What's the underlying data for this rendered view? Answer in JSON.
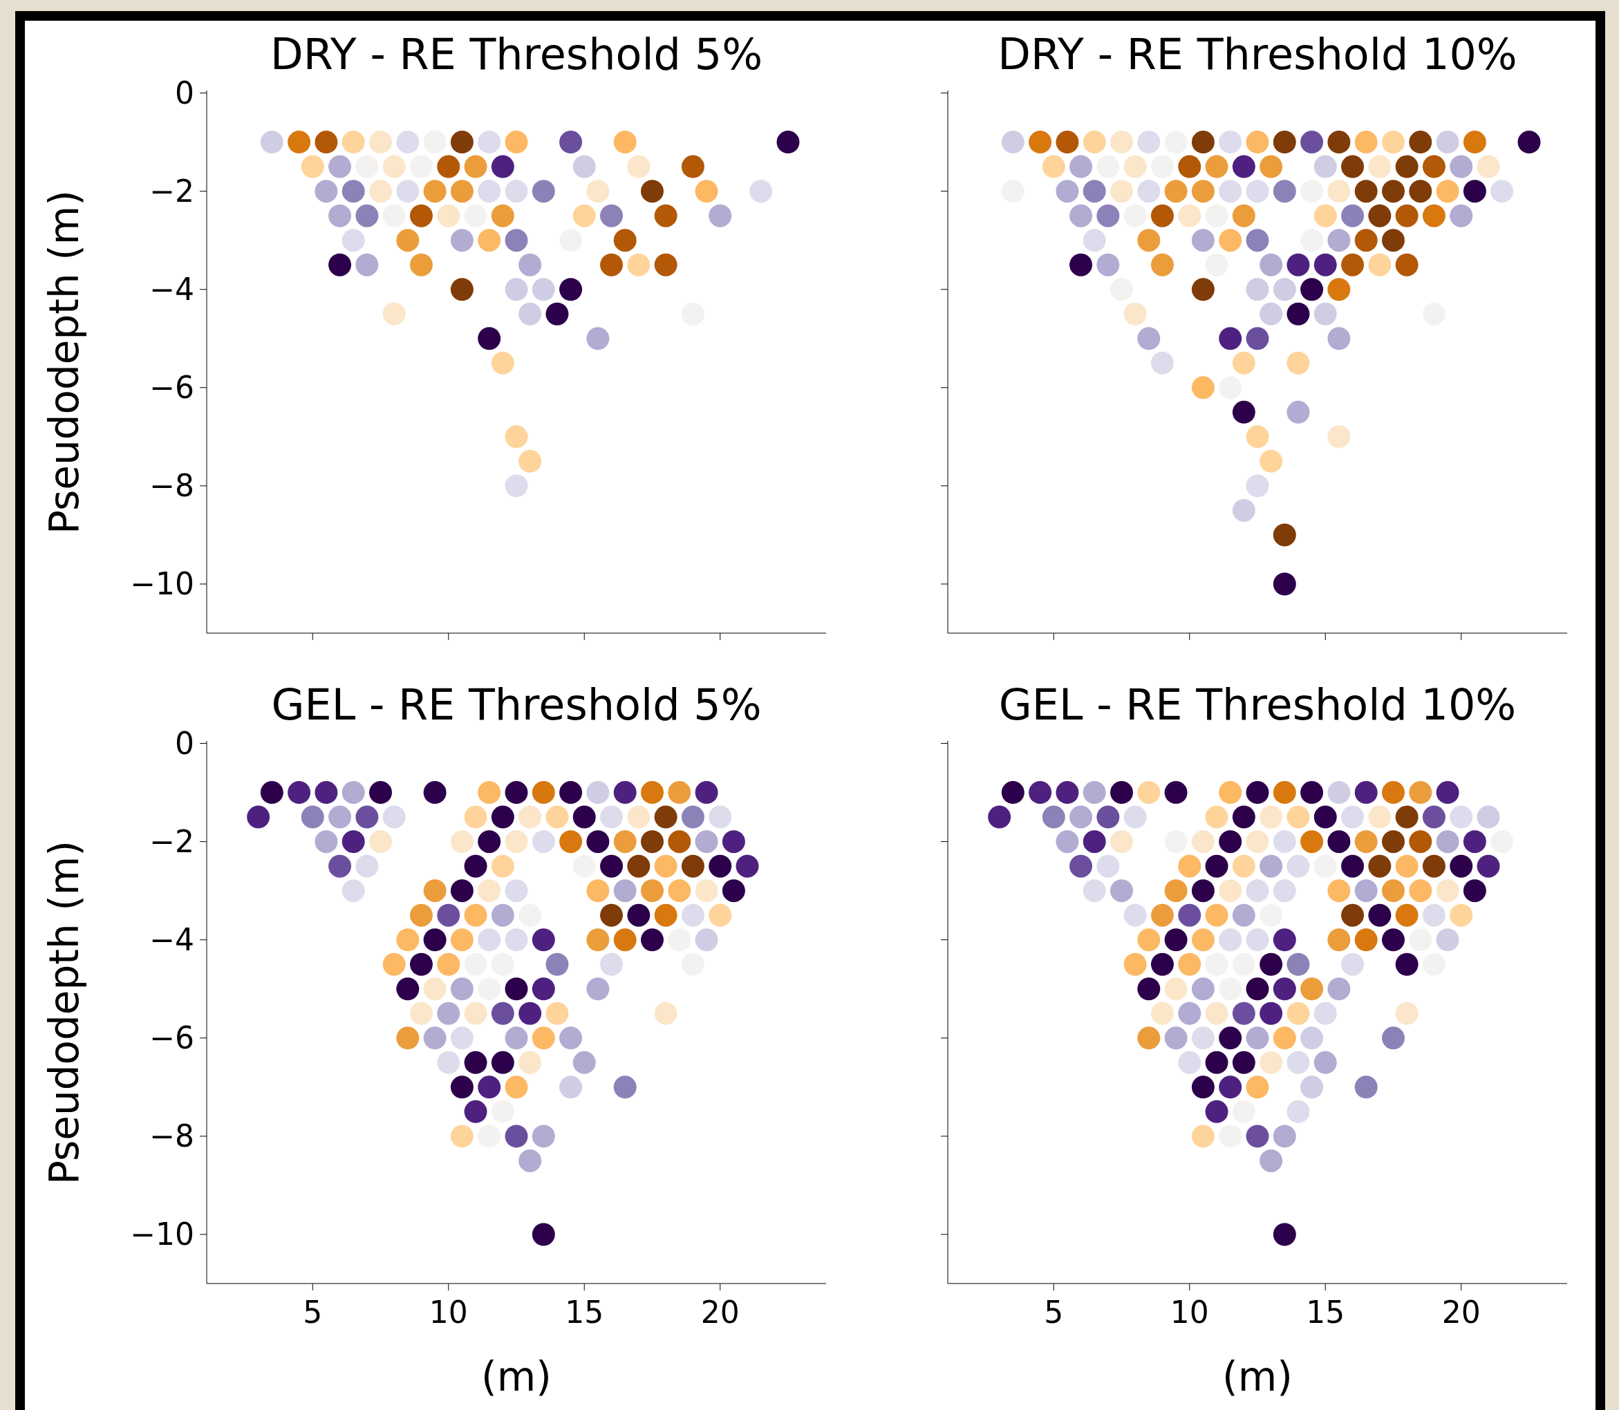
{
  "chart_data": [
    {
      "type": "scatter",
      "title": "DRY - RE Threshold 5%",
      "ylabel": "Pseudodepth (m)",
      "xlim": [
        1.1,
        23.9
      ],
      "ylim": [
        -11,
        0.05
      ],
      "xticks": [
        5,
        10,
        15,
        20
      ],
      "yticks": [
        0,
        {
          "value": -2,
          "label": "−2"
        },
        {
          "value": -4,
          "label": "−4"
        },
        {
          "value": -6,
          "label": "−6"
        },
        {
          "value": -8,
          "label": "−8"
        },
        {
          "value": -10,
          "label": "−10"
        }
      ],
      "tick_labels": "y",
      "marker": "circle",
      "series": [
        {
          "x": [
            3.5,
            4.5,
            5.5,
            6.5,
            7.5,
            8.5,
            9.5,
            10.5,
            11.5,
            12.5,
            14.5,
            16.5,
            22.5,
            5,
            6,
            7,
            8,
            9,
            10,
            11,
            12,
            15,
            17,
            19,
            5.5,
            6.5,
            7.5,
            8.5,
            9.5,
            10.5,
            11.5,
            12.5,
            13.5,
            15.5,
            17.5,
            19.5,
            21.5,
            6,
            7,
            8,
            9,
            10,
            11,
            12,
            15,
            16,
            18,
            20,
            6.5,
            8.5,
            10.5,
            11.5,
            12.5,
            14.5,
            16.5,
            6,
            7,
            9,
            13,
            16,
            17,
            18,
            10.5,
            12.5,
            13.5,
            14.5,
            8,
            13,
            14,
            19,
            11.5,
            15.5,
            12,
            12.5,
            13,
            12.5
          ],
          "values": [
            -1,
            -1,
            -1,
            -1,
            -1,
            -1,
            -1,
            -1,
            -1,
            -1,
            -1,
            -1,
            -1,
            -1.5,
            -1.5,
            -1.5,
            -1.5,
            -1.5,
            -1.5,
            -1.5,
            -1.5,
            -1.5,
            -1.5,
            -1.5,
            -2,
            -2,
            -2,
            -2,
            -2,
            -2,
            -2,
            -2,
            -2,
            -2,
            -2,
            -2,
            -2,
            -2.5,
            -2.5,
            -2.5,
            -2.5,
            -2.5,
            -2.5,
            -2.5,
            -2.5,
            -2.5,
            -2.5,
            -2.5,
            -3,
            -3,
            -3,
            -3,
            -3,
            -3,
            -3,
            -3.5,
            -3.5,
            -3.5,
            -3.5,
            -3.5,
            -3.5,
            -3.5,
            -4,
            -4,
            -4,
            -4,
            -4.5,
            -4.5,
            -4.5,
            -4.5,
            -5,
            -5,
            -5.5,
            -7,
            -7.5,
            -8
          ],
          "colors": [
            "#cecde4",
            "#d8780f",
            "#b35806",
            "#fed49a",
            "#fbe6c9",
            "#dcdcec",
            "#f3f2f0",
            "#7f3b08",
            "#dcdcec",
            "#fdb863",
            "#6b4f9e",
            "#fdb863",
            "#2d004b",
            "#fed49a",
            "#b2abd2",
            "#f3f2f0",
            "#fbe6c9",
            "#f3f2f0",
            "#b35806",
            "#eb9d3c",
            "#4e2180",
            "#cecde4",
            "#fbe6c9",
            "#b35806",
            "#b2abd2",
            "#8c82b8",
            "#fbe6c9",
            "#dcdcec",
            "#eb9d3c",
            "#eb9d3c",
            "#dcdcec",
            "#dcdcec",
            "#8c82b8",
            "#fbe6c9",
            "#7f3b08",
            "#fdb863",
            "#dcdcec",
            "#b2abd2",
            "#8c82b8",
            "#f3f2f0",
            "#b35806",
            "#fbe6c9",
            "#f3f2f0",
            "#eb9d3c",
            "#fed49a",
            "#8c82b8",
            "#b35806",
            "#b2abd2",
            "#dcdcec",
            "#eb9d3c",
            "#b2abd2",
            "#fdb863",
            "#8c82b8",
            "#f3f2f0",
            "#b35806",
            "#2d004b",
            "#b2abd2",
            "#eb9d3c",
            "#b2abd2",
            "#b35806",
            "#fed49a",
            "#b35806",
            "#7f3b08",
            "#cecde4",
            "#cecde4",
            "#2d004b",
            "#fbe6c9",
            "#cecde4",
            "#2d004b",
            "#f3f2f0",
            "#2d004b",
            "#b2abd2",
            "#fed49a",
            "#fed49a",
            "#fed49a",
            "#dcdcec"
          ]
        }
      ]
    },
    {
      "type": "scatter",
      "title": "DRY - RE Threshold 10%",
      "xlim": [
        1.1,
        23.9
      ],
      "ylim": [
        -11,
        0.05
      ],
      "xticks": [
        5,
        10,
        15,
        20
      ],
      "yticks": [
        {
          "value": 0,
          "label": null
        },
        {
          "value": -2,
          "label": null
        },
        {
          "value": -4,
          "label": null
        },
        {
          "value": -6,
          "label": null
        },
        {
          "value": -8,
          "label": null
        },
        {
          "value": -10,
          "label": null
        }
      ],
      "tick_labels": false,
      "marker": "circle",
      "series": [
        {
          "x": [
            3.5,
            4.5,
            5.5,
            6.5,
            7.5,
            8.5,
            9.5,
            10.5,
            11.5,
            12.5,
            13.5,
            14.5,
            15.5,
            16.5,
            17.5,
            18.5,
            19.5,
            20.5,
            22.5,
            5,
            6,
            7,
            8,
            9,
            10,
            11,
            12,
            13,
            15,
            16,
            17,
            18,
            19,
            20,
            21,
            3.5,
            5.5,
            6.5,
            7.5,
            8.5,
            9.5,
            10.5,
            11.5,
            12.5,
            13.5,
            14.5,
            15.5,
            16.5,
            17.5,
            18.5,
            19.5,
            20.5,
            21.5,
            6,
            7,
            8,
            9,
            10,
            11,
            12,
            15,
            16,
            17,
            18,
            19,
            20,
            6.5,
            8.5,
            10.5,
            11.5,
            12.5,
            14.5,
            15.5,
            16.5,
            17.5,
            6,
            7,
            9,
            11,
            13,
            14,
            15,
            16,
            17,
            18,
            7.5,
            10.5,
            12.5,
            13.5,
            14.5,
            15.5,
            8,
            13,
            14,
            15,
            19,
            8.5,
            11.5,
            12.5,
            15.5,
            9,
            12,
            14,
            10.5,
            11.5,
            12,
            14,
            12.5,
            15.5,
            13,
            12.5,
            12,
            13.5,
            13.5
          ],
          "values": [
            -1,
            -1,
            -1,
            -1,
            -1,
            -1,
            -1,
            -1,
            -1,
            -1,
            -1,
            -1,
            -1,
            -1,
            -1,
            -1,
            -1,
            -1,
            -1,
            -1.5,
            -1.5,
            -1.5,
            -1.5,
            -1.5,
            -1.5,
            -1.5,
            -1.5,
            -1.5,
            -1.5,
            -1.5,
            -1.5,
            -1.5,
            -1.5,
            -1.5,
            -1.5,
            -2,
            -2,
            -2,
            -2,
            -2,
            -2,
            -2,
            -2,
            -2,
            -2,
            -2,
            -2,
            -2,
            -2,
            -2,
            -2,
            -2,
            -2,
            -2.5,
            -2.5,
            -2.5,
            -2.5,
            -2.5,
            -2.5,
            -2.5,
            -2.5,
            -2.5,
            -2.5,
            -2.5,
            -2.5,
            -2.5,
            -3,
            -3,
            -3,
            -3,
            -3,
            -3,
            -3,
            -3,
            -3,
            -3.5,
            -3.5,
            -3.5,
            -3.5,
            -3.5,
            -3.5,
            -3.5,
            -3.5,
            -3.5,
            -3.5,
            -4,
            -4,
            -4,
            -4,
            -4,
            -4,
            -4.5,
            -4.5,
            -4.5,
            -4.5,
            -4.5,
            -5,
            -5,
            -5,
            -5,
            -5.5,
            -5.5,
            -5.5,
            -6,
            -6,
            -6.5,
            -6.5,
            -7,
            -7,
            -7.5,
            -8,
            -8.5,
            -9,
            -10
          ],
          "colors": [
            "#cecde4",
            "#d8780f",
            "#b35806",
            "#fed49a",
            "#fbe6c9",
            "#dcdcec",
            "#f3f2f0",
            "#7f3b08",
            "#dcdcec",
            "#fdb863",
            "#7f3b08",
            "#6b4f9e",
            "#7f3b08",
            "#fdb863",
            "#fed49a",
            "#7f3b08",
            "#cecde4",
            "#d8780f",
            "#2d004b",
            "#fed49a",
            "#b2abd2",
            "#f3f2f0",
            "#fbe6c9",
            "#f3f2f0",
            "#b35806",
            "#eb9d3c",
            "#4e2180",
            "#eb9d3c",
            "#cecde4",
            "#7f3b08",
            "#fbe6c9",
            "#7f3b08",
            "#b35806",
            "#b2abd2",
            "#fbe6c9",
            "#f3f2f0",
            "#b2abd2",
            "#8c82b8",
            "#fbe6c9",
            "#dcdcec",
            "#eb9d3c",
            "#eb9d3c",
            "#dcdcec",
            "#dcdcec",
            "#8c82b8",
            "#f3f2f0",
            "#fbe6c9",
            "#7f3b08",
            "#7f3b08",
            "#7f3b08",
            "#fdb863",
            "#2d004b",
            "#dcdcec",
            "#b2abd2",
            "#8c82b8",
            "#f3f2f0",
            "#b35806",
            "#fbe6c9",
            "#f3f2f0",
            "#eb9d3c",
            "#fed49a",
            "#8c82b8",
            "#7f3b08",
            "#b35806",
            "#d8780f",
            "#b2abd2",
            "#dcdcec",
            "#eb9d3c",
            "#b2abd2",
            "#fdb863",
            "#8c82b8",
            "#f3f2f0",
            "#b2abd2",
            "#b35806",
            "#7f3b08",
            "#2d004b",
            "#b2abd2",
            "#eb9d3c",
            "#f3f2f0",
            "#b2abd2",
            "#4e2180",
            "#4e2180",
            "#b35806",
            "#fed49a",
            "#b35806",
            "#f3f2f0",
            "#7f3b08",
            "#cecde4",
            "#cecde4",
            "#2d004b",
            "#d8780f",
            "#fbe6c9",
            "#cecde4",
            "#2d004b",
            "#cecde4",
            "#f3f2f0",
            "#b2abd2",
            "#4e2180",
            "#6b4f9e",
            "#b2abd2",
            "#dcdcec",
            "#fed49a",
            "#fed49a",
            "#fdb863",
            "#f3f2f0",
            "#2d004b",
            "#b2abd2",
            "#fed49a",
            "#fbe6c9",
            "#fed49a",
            "#dcdcec",
            "#cecde4",
            "#7f3b08",
            "#2d004b"
          ]
        }
      ]
    },
    {
      "type": "scatter",
      "title": "GEL - RE Threshold 5%",
      "xlabel": "(m)",
      "ylabel": "Pseudodepth (m)",
      "xlim": [
        1.1,
        23.9
      ],
      "ylim": [
        -11,
        0.05
      ],
      "xticks": [
        5,
        10,
        15,
        20
      ],
      "yticks": [
        0,
        {
          "value": -2,
          "label": "−2"
        },
        {
          "value": -4,
          "label": "−4"
        },
        {
          "value": -6,
          "label": "−6"
        },
        {
          "value": -8,
          "label": "−8"
        },
        {
          "value": -10,
          "label": "−10"
        }
      ],
      "marker": "circle",
      "series": [
        {
          "x": [
            3.5,
            4.5,
            5.5,
            6.5,
            7.5,
            9.5,
            11.5,
            12.5,
            13.5,
            14.5,
            15.5,
            16.5,
            17.5,
            18.5,
            19.5,
            3,
            5,
            6,
            7,
            8,
            11,
            12,
            13,
            14,
            15,
            16,
            17,
            18,
            19,
            20,
            5.5,
            6.5,
            7.5,
            10.5,
            11.5,
            12.5,
            13.5,
            14.5,
            15.5,
            16.5,
            17.5,
            18.5,
            19.5,
            20.5,
            6,
            7,
            11,
            12,
            15,
            16,
            17,
            18,
            19,
            20,
            21,
            6.5,
            9.5,
            10.5,
            11.5,
            12.5,
            15.5,
            16.5,
            17.5,
            18.5,
            19.5,
            20.5,
            9,
            10,
            11,
            12,
            13,
            16,
            17,
            18,
            19,
            20,
            8.5,
            9.5,
            10.5,
            11.5,
            12.5,
            13.5,
            15.5,
            16.5,
            17.5,
            18.5,
            19.5,
            8,
            9,
            10,
            11,
            12,
            14,
            16,
            19,
            8.5,
            9.5,
            10.5,
            11.5,
            12.5,
            13.5,
            15.5,
            9,
            10,
            11,
            12,
            13,
            14,
            18,
            8.5,
            9.5,
            10.5,
            12.5,
            13.5,
            14.5,
            10,
            11,
            12,
            13,
            15,
            10.5,
            11.5,
            12.5,
            14.5,
            16.5,
            11,
            12,
            10.5,
            11.5,
            12.5,
            13.5,
            13,
            13.5
          ],
          "values": [
            -1,
            -1,
            -1,
            -1,
            -1,
            -1,
            -1,
            -1,
            -1,
            -1,
            -1,
            -1,
            -1,
            -1,
            -1,
            -1.5,
            -1.5,
            -1.5,
            -1.5,
            -1.5,
            -1.5,
            -1.5,
            -1.5,
            -1.5,
            -1.5,
            -1.5,
            -1.5,
            -1.5,
            -1.5,
            -1.5,
            -2,
            -2,
            -2,
            -2,
            -2,
            -2,
            -2,
            -2,
            -2,
            -2,
            -2,
            -2,
            -2,
            -2,
            -2.5,
            -2.5,
            -2.5,
            -2.5,
            -2.5,
            -2.5,
            -2.5,
            -2.5,
            -2.5,
            -2.5,
            -2.5,
            -3,
            -3,
            -3,
            -3,
            -3,
            -3,
            -3,
            -3,
            -3,
            -3,
            -3,
            -3.5,
            -3.5,
            -3.5,
            -3.5,
            -3.5,
            -3.5,
            -3.5,
            -3.5,
            -3.5,
            -3.5,
            -4,
            -4,
            -4,
            -4,
            -4,
            -4,
            -4,
            -4,
            -4,
            -4,
            -4,
            -4.5,
            -4.5,
            -4.5,
            -4.5,
            -4.5,
            -4.5,
            -4.5,
            -4.5,
            -5,
            -5,
            -5,
            -5,
            -5,
            -5,
            -5,
            -5.5,
            -5.5,
            -5.5,
            -5.5,
            -5.5,
            -5.5,
            -5.5,
            -6,
            -6,
            -6,
            -6,
            -6,
            -6,
            -6.5,
            -6.5,
            -6.5,
            -6.5,
            -6.5,
            -7,
            -7,
            -7,
            -7,
            -7,
            -7.5,
            -7.5,
            -8,
            -8,
            -8,
            -8,
            -8.5,
            -10
          ],
          "colors": [
            "#2d004b",
            "#4e2180",
            "#4e2180",
            "#b2abd2",
            "#2d004b",
            "#2d004b",
            "#fdb863",
            "#2d004b",
            "#d8780f",
            "#2d004b",
            "#cecde4",
            "#4e2180",
            "#d8780f",
            "#eb9d3c",
            "#4e2180",
            "#4e2180",
            "#8c82b8",
            "#b2abd2",
            "#6b4f9e",
            "#dcdcec",
            "#fed49a",
            "#2d004b",
            "#fbe6c9",
            "#fed49a",
            "#2d004b",
            "#dcdcec",
            "#fbe6c9",
            "#7f3b08",
            "#8c82b8",
            "#dcdcec",
            "#b2abd2",
            "#4e2180",
            "#fbe6c9",
            "#fbe6c9",
            "#2d004b",
            "#fbe6c9",
            "#dcdcec",
            "#d8780f",
            "#2d004b",
            "#eb9d3c",
            "#7f3b08",
            "#b35806",
            "#b2abd2",
            "#4e2180",
            "#6b4f9e",
            "#dcdcec",
            "#2d004b",
            "#fed49a",
            "#f3f2f0",
            "#2d004b",
            "#7f3b08",
            "#fdb863",
            "#7f3b08",
            "#2d004b",
            "#4e2180",
            "#dcdcec",
            "#eb9d3c",
            "#2d004b",
            "#fbe6c9",
            "#dcdcec",
            "#fdb863",
            "#b2abd2",
            "#eb9d3c",
            "#fdb863",
            "#fbe6c9",
            "#2d004b",
            "#eb9d3c",
            "#6b4f9e",
            "#fdb863",
            "#b2abd2",
            "#f3f2f0",
            "#7f3b08",
            "#2d004b",
            "#d8780f",
            "#dcdcec",
            "#fed49a",
            "#fdb863",
            "#2d004b",
            "#fdb863",
            "#dcdcec",
            "#dcdcec",
            "#4e2180",
            "#eb9d3c",
            "#d8780f",
            "#2d004b",
            "#f3f2f0",
            "#cecde4",
            "#fdb863",
            "#2d004b",
            "#fdb863",
            "#f3f2f0",
            "#f3f2f0",
            "#8c82b8",
            "#dcdcec",
            "#f3f2f0",
            "#2d004b",
            "#fbe6c9",
            "#b2abd2",
            "#f3f2f0",
            "#2d004b",
            "#4e2180",
            "#b2abd2",
            "#fbe6c9",
            "#b2abd2",
            "#fbe6c9",
            "#6b4f9e",
            "#4e2180",
            "#fed49a",
            "#fbe6c9",
            "#eb9d3c",
            "#b2abd2",
            "#dcdcec",
            "#b2abd2",
            "#fdb863",
            "#b2abd2",
            "#dcdcec",
            "#2d004b",
            "#2d004b",
            "#fbe6c9",
            "#b2abd2",
            "#2d004b",
            "#4e2180",
            "#fdb863",
            "#cecde4",
            "#8c82b8",
            "#4e2180",
            "#f3f2f0",
            "#fed49a",
            "#f3f2f0",
            "#6b4f9e",
            "#b2abd2",
            "#b2abd2",
            "#2d004b"
          ]
        }
      ]
    },
    {
      "type": "scatter",
      "title": "GEL - RE Threshold 10%",
      "xlabel": "(m)",
      "xlim": [
        1.1,
        23.9
      ],
      "ylim": [
        -11,
        0.05
      ],
      "xticks": [
        5,
        10,
        15,
        20
      ],
      "yticks": [
        {
          "value": 0,
          "label": null
        },
        {
          "value": -2,
          "label": null
        },
        {
          "value": -4,
          "label": null
        },
        {
          "value": -6,
          "label": null
        },
        {
          "value": -8,
          "label": null
        },
        {
          "value": -10,
          "label": null
        }
      ],
      "tick_labels": "x",
      "marker": "circle",
      "series": [
        {
          "x": [
            3.5,
            4.5,
            5.5,
            6.5,
            7.5,
            8.5,
            9.5,
            11.5,
            12.5,
            13.5,
            14.5,
            15.5,
            16.5,
            17.5,
            18.5,
            19.5,
            3,
            5,
            6,
            7,
            8,
            11,
            12,
            13,
            14,
            15,
            16,
            17,
            18,
            19,
            20,
            21,
            5.5,
            6.5,
            7.5,
            9.5,
            10.5,
            11.5,
            12.5,
            13.5,
            14.5,
            15.5,
            16.5,
            17.5,
            18.5,
            19.5,
            20.5,
            21.5,
            6,
            7,
            10,
            11,
            12,
            13,
            14,
            15,
            16,
            17,
            18,
            19,
            20,
            21,
            6.5,
            7.5,
            9.5,
            10.5,
            11.5,
            12.5,
            13.5,
            15.5,
            16.5,
            17.5,
            18.5,
            19.5,
            20.5,
            8,
            9,
            10,
            11,
            12,
            13,
            16,
            17,
            18,
            19,
            20,
            8.5,
            9.5,
            10.5,
            11.5,
            12.5,
            13.5,
            15.5,
            16.5,
            17.5,
            18.5,
            19.5,
            8,
            9,
            10,
            11,
            12,
            13,
            14,
            16,
            18,
            19,
            8.5,
            9.5,
            10.5,
            11.5,
            12.5,
            13.5,
            14.5,
            15.5,
            9,
            10,
            11,
            12,
            13,
            14,
            15,
            18,
            8.5,
            9.5,
            10.5,
            11.5,
            12.5,
            13.5,
            14.5,
            17.5,
            10,
            11,
            12,
            13,
            14,
            15,
            10.5,
            11.5,
            12.5,
            14.5,
            16.5,
            11,
            12,
            14,
            10.5,
            11.5,
            12.5,
            13.5,
            13,
            13.5
          ],
          "values": [
            -1,
            -1,
            -1,
            -1,
            -1,
            -1,
            -1,
            -1,
            -1,
            -1,
            -1,
            -1,
            -1,
            -1,
            -1,
            -1,
            -1.5,
            -1.5,
            -1.5,
            -1.5,
            -1.5,
            -1.5,
            -1.5,
            -1.5,
            -1.5,
            -1.5,
            -1.5,
            -1.5,
            -1.5,
            -1.5,
            -1.5,
            -1.5,
            -2,
            -2,
            -2,
            -2,
            -2,
            -2,
            -2,
            -2,
            -2,
            -2,
            -2,
            -2,
            -2,
            -2,
            -2,
            -2,
            -2.5,
            -2.5,
            -2.5,
            -2.5,
            -2.5,
            -2.5,
            -2.5,
            -2.5,
            -2.5,
            -2.5,
            -2.5,
            -2.5,
            -2.5,
            -2.5,
            -3,
            -3,
            -3,
            -3,
            -3,
            -3,
            -3,
            -3,
            -3,
            -3,
            -3,
            -3,
            -3,
            -3.5,
            -3.5,
            -3.5,
            -3.5,
            -3.5,
            -3.5,
            -3.5,
            -3.5,
            -3.5,
            -3.5,
            -3.5,
            -4,
            -4,
            -4,
            -4,
            -4,
            -4,
            -4,
            -4,
            -4,
            -4,
            -4,
            -4.5,
            -4.5,
            -4.5,
            -4.5,
            -4.5,
            -4.5,
            -4.5,
            -4.5,
            -4.5,
            -4.5,
            -5,
            -5,
            -5,
            -5,
            -5,
            -5,
            -5,
            -5,
            -5.5,
            -5.5,
            -5.5,
            -5.5,
            -5.5,
            -5.5,
            -5.5,
            -5.5,
            -6,
            -6,
            -6,
            -6,
            -6,
            -6,
            -6,
            -6,
            -6.5,
            -6.5,
            -6.5,
            -6.5,
            -6.5,
            -6.5,
            -7,
            -7,
            -7,
            -7,
            -7,
            -7.5,
            -7.5,
            -7.5,
            -8,
            -8,
            -8,
            -8,
            -8.5,
            -10
          ],
          "colors": [
            "#2d004b",
            "#4e2180",
            "#4e2180",
            "#b2abd2",
            "#2d004b",
            "#fed49a",
            "#2d004b",
            "#fdb863",
            "#2d004b",
            "#d8780f",
            "#2d004b",
            "#cecde4",
            "#4e2180",
            "#d8780f",
            "#eb9d3c",
            "#4e2180",
            "#4e2180",
            "#8c82b8",
            "#b2abd2",
            "#6b4f9e",
            "#dcdcec",
            "#fed49a",
            "#2d004b",
            "#fbe6c9",
            "#fed49a",
            "#2d004b",
            "#dcdcec",
            "#fbe6c9",
            "#7f3b08",
            "#6b4f9e",
            "#dcdcec",
            "#cecde4",
            "#b2abd2",
            "#4e2180",
            "#fbe6c9",
            "#f3f2f0",
            "#fbe6c9",
            "#2d004b",
            "#fbe6c9",
            "#dcdcec",
            "#d8780f",
            "#2d004b",
            "#eb9d3c",
            "#7f3b08",
            "#b35806",
            "#b2abd2",
            "#4e2180",
            "#f3f2f0",
            "#6b4f9e",
            "#dcdcec",
            "#fdb863",
            "#2d004b",
            "#fed49a",
            "#b2abd2",
            "#dcdcec",
            "#f3f2f0",
            "#2d004b",
            "#7f3b08",
            "#fdb863",
            "#7f3b08",
            "#2d004b",
            "#4e2180",
            "#dcdcec",
            "#b2abd2",
            "#eb9d3c",
            "#2d004b",
            "#fbe6c9",
            "#dcdcec",
            "#dcdcec",
            "#fdb863",
            "#b2abd2",
            "#eb9d3c",
            "#fdb863",
            "#fbe6c9",
            "#2d004b",
            "#dcdcec",
            "#eb9d3c",
            "#6b4f9e",
            "#fdb863",
            "#b2abd2",
            "#f3f2f0",
            "#7f3b08",
            "#2d004b",
            "#d8780f",
            "#dcdcec",
            "#fed49a",
            "#fdb863",
            "#2d004b",
            "#fdb863",
            "#dcdcec",
            "#dcdcec",
            "#4e2180",
            "#eb9d3c",
            "#d8780f",
            "#2d004b",
            "#f3f2f0",
            "#cecde4",
            "#fdb863",
            "#2d004b",
            "#fdb863",
            "#f3f2f0",
            "#f3f2f0",
            "#2d004b",
            "#8c82b8",
            "#dcdcec",
            "#2d004b",
            "#f3f2f0",
            "#2d004b",
            "#fbe6c9",
            "#b2abd2",
            "#f3f2f0",
            "#2d004b",
            "#4e2180",
            "#eb9d3c",
            "#b2abd2",
            "#fbe6c9",
            "#b2abd2",
            "#fbe6c9",
            "#6b4f9e",
            "#4e2180",
            "#fed49a",
            "#dcdcec",
            "#fbe6c9",
            "#eb9d3c",
            "#b2abd2",
            "#dcdcec",
            "#2d004b",
            "#b2abd2",
            "#fdb863",
            "#cecde4",
            "#8c82b8",
            "#dcdcec",
            "#2d004b",
            "#2d004b",
            "#fbe6c9",
            "#dcdcec",
            "#b2abd2",
            "#2d004b",
            "#4e2180",
            "#fdb863",
            "#cecde4",
            "#8c82b8",
            "#4e2180",
            "#f3f2f0",
            "#dcdcec",
            "#fed49a",
            "#f3f2f0",
            "#6b4f9e",
            "#b2abd2",
            "#b2abd2",
            "#2d004b"
          ]
        }
      ]
    }
  ]
}
